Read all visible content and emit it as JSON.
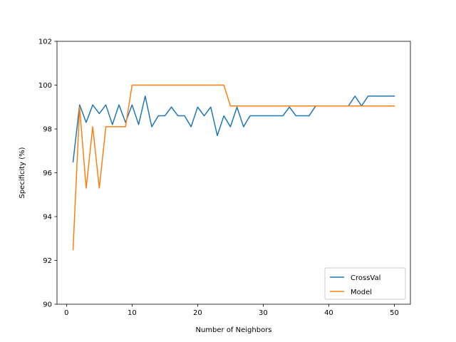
{
  "chart_data": {
    "type": "line",
    "xlabel": "Number of Neighbors",
    "ylabel": "Specificity (%)",
    "xlim": [
      -1.45,
      52.45
    ],
    "ylim": [
      90,
      102
    ],
    "xticks": [
      0,
      10,
      20,
      30,
      40,
      50
    ],
    "yticks": [
      90,
      92,
      94,
      96,
      98,
      100,
      102
    ],
    "grid": false,
    "legend_position": "lower right",
    "series": [
      {
        "name": "CrossVal",
        "color": "#1f77b4",
        "x": [
          1,
          2,
          3,
          4,
          5,
          6,
          7,
          8,
          9,
          10,
          11,
          12,
          13,
          14,
          15,
          16,
          17,
          18,
          19,
          20,
          21,
          22,
          23,
          24,
          25,
          26,
          27,
          28,
          29,
          30,
          31,
          32,
          33,
          34,
          35,
          36,
          37,
          38,
          39,
          40,
          41,
          42,
          43,
          44,
          45,
          46,
          47,
          48,
          49,
          50
        ],
        "y": [
          96.5,
          99.1,
          98.3,
          99.1,
          98.7,
          99.1,
          98.2,
          99.1,
          98.3,
          99.1,
          98.2,
          99.5,
          98.1,
          98.6,
          98.6,
          99.0,
          98.6,
          98.6,
          98.1,
          99.0,
          98.6,
          99.0,
          97.7,
          98.6,
          98.1,
          99.0,
          98.1,
          98.6,
          98.6,
          98.6,
          98.6,
          98.6,
          98.6,
          99.0,
          98.6,
          98.6,
          98.6,
          99.05,
          99.05,
          99.05,
          99.05,
          99.05,
          99.05,
          99.5,
          99.05,
          99.5,
          99.5,
          99.5,
          99.5,
          99.5
        ]
      },
      {
        "name": "Model",
        "color": "#ff7f0e",
        "x": [
          1,
          2,
          3,
          4,
          5,
          6,
          7,
          8,
          9,
          10,
          11,
          12,
          13,
          14,
          15,
          16,
          17,
          18,
          19,
          20,
          21,
          22,
          23,
          24,
          25,
          26,
          27,
          28,
          29,
          30,
          31,
          32,
          33,
          34,
          35,
          36,
          37,
          38,
          39,
          40,
          41,
          42,
          43,
          44,
          45,
          46,
          47,
          48,
          49,
          50
        ],
        "y": [
          92.5,
          99.0,
          95.3,
          98.1,
          95.3,
          98.1,
          98.1,
          98.1,
          98.1,
          100,
          100,
          100,
          100,
          100,
          100,
          100,
          100,
          100,
          100,
          100,
          100,
          100,
          100,
          100,
          99.05,
          99.05,
          99.05,
          99.05,
          99.05,
          99.05,
          99.05,
          99.05,
          99.05,
          99.05,
          99.05,
          99.05,
          99.05,
          99.05,
          99.05,
          99.05,
          99.05,
          99.05,
          99.05,
          99.05,
          99.05,
          99.05,
          99.05,
          99.05,
          99.05,
          99.05
        ]
      }
    ]
  }
}
